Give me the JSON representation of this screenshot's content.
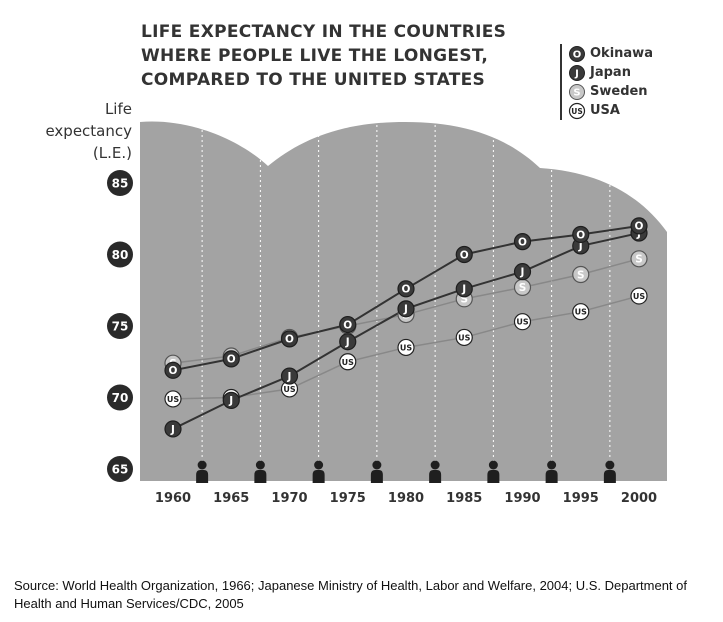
{
  "chart_data": {
    "type": "line",
    "title_lines": [
      "LIFE EXPECTANCY IN THE COUNTRIES",
      "WHERE PEOPLE LIVE THE LONGEST,",
      "COMPARED TO THE UNITED STATES"
    ],
    "ylabel_lines": [
      "Life",
      "expectancy",
      "(L.E.)"
    ],
    "xlabel": "",
    "x": [
      1960,
      1965,
      1970,
      1975,
      1980,
      1985,
      1990,
      1995,
      2000
    ],
    "x_tick_labels": [
      "1960",
      "1965",
      "1970",
      "1975",
      "1980",
      "1985",
      "1990",
      "1995",
      "2000"
    ],
    "y_tick_labels": [
      "85",
      "80",
      "75",
      "70",
      "65"
    ],
    "y_ticks": [
      85,
      80,
      75,
      70,
      65
    ],
    "ylim": [
      65,
      85
    ],
    "legend_position": "top-right",
    "series": [
      {
        "name": "Okinawa",
        "marker": "O",
        "style": "dark",
        "values": [
          71.9,
          72.7,
          74.1,
          75.1,
          77.6,
          80.0,
          80.9,
          81.4,
          82.0
        ]
      },
      {
        "name": "Japan",
        "marker": "J",
        "style": "dark",
        "values": [
          67.8,
          69.8,
          71.5,
          73.9,
          76.2,
          77.6,
          78.8,
          80.6,
          81.5
        ]
      },
      {
        "name": "Sweden",
        "marker": "S",
        "style": "light",
        "values": [
          72.4,
          72.9,
          74.2,
          75.0,
          75.8,
          76.9,
          77.7,
          78.6,
          79.7
        ]
      },
      {
        "name": "USA",
        "marker": "US",
        "style": "white",
        "values": [
          69.9,
          70.0,
          70.6,
          72.5,
          73.5,
          74.2,
          75.3,
          76.0,
          77.1
        ]
      }
    ],
    "colors": {
      "background_hills": "#a3a3a3",
      "line_dark": "#333333",
      "line_light": "#888888",
      "marker_dark": "#3a3a3a",
      "marker_light": "#c8c8c8",
      "marker_white": "#ffffff",
      "tick_badge": "#2a2a2a"
    }
  },
  "source_note": "Source: World Health Organization, 1966; Japanese Ministry of Health, Labor and Welfare, 2004; U.S. Department of Health and Human Services/CDC, 2005"
}
